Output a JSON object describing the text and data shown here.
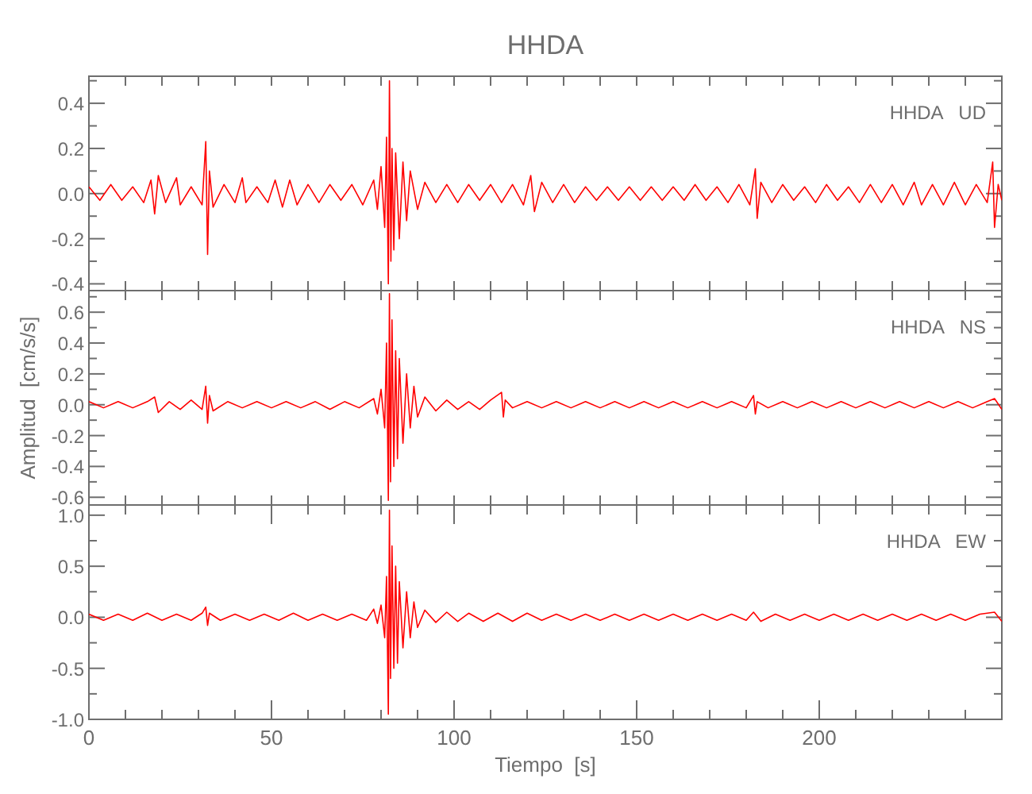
{
  "chart_data": [
    {
      "type": "line",
      "title": "HHDA",
      "annotations": [
        "HHDA   UD"
      ],
      "tick_labels": "y",
      "xlim": [
        0,
        250
      ],
      "xticks": [
        {
          "value": 0,
          "label": null
        },
        {
          "value": 10,
          "label": null
        },
        {
          "value": 20,
          "label": null
        },
        {
          "value": 30,
          "label": null
        },
        {
          "value": 40,
          "label": null
        },
        {
          "value": 50,
          "label": null
        },
        {
          "value": 60,
          "label": null
        },
        {
          "value": 70,
          "label": null
        },
        {
          "value": 80,
          "label": null
        },
        {
          "value": 90,
          "label": null
        },
        {
          "value": 100,
          "label": null
        },
        {
          "value": 110,
          "label": null
        },
        {
          "value": 120,
          "label": null
        },
        {
          "value": 130,
          "label": null
        },
        {
          "value": 140,
          "label": null
        },
        {
          "value": 150,
          "label": null
        },
        {
          "value": 160,
          "label": null
        },
        {
          "value": 170,
          "label": null
        },
        {
          "value": 180,
          "label": null
        },
        {
          "value": 190,
          "label": null
        },
        {
          "value": 200,
          "label": null
        },
        {
          "value": 210,
          "label": null
        },
        {
          "value": 220,
          "label": null
        },
        {
          "value": 230,
          "label": null
        },
        {
          "value": 240,
          "label": null
        }
      ],
      "ylim": [
        -0.43,
        0.52
      ],
      "yticks": [
        {
          "value": -0.4,
          "label": "-0.4"
        },
        {
          "value": -0.3,
          "label": null
        },
        {
          "value": -0.2,
          "label": "-0.2"
        },
        {
          "value": -0.1,
          "label": null
        },
        {
          "value": 0,
          "label": "0.0"
        },
        {
          "value": 0.1,
          "label": null
        },
        0.2,
        {
          "value": 0.3,
          "label": null
        },
        0.4,
        {
          "value": 0.5,
          "label": null
        }
      ],
      "series": [
        {
          "color": "#ff0000",
          "x": [
            0,
            3,
            6,
            9,
            12,
            15,
            17,
            18,
            19,
            21,
            24,
            25,
            28,
            31,
            32,
            32.5,
            33,
            34,
            37,
            40,
            42,
            43,
            46,
            49,
            51,
            53,
            55,
            57,
            60,
            63,
            66,
            69,
            72,
            75,
            78,
            79,
            80,
            81,
            81.5,
            82,
            82.3,
            82.7,
            83,
            83.5,
            84,
            85,
            86,
            87,
            88,
            90,
            92,
            95,
            98,
            101,
            104,
            107,
            110,
            113,
            116,
            119,
            121,
            122,
            124,
            127,
            130,
            133,
            136,
            139,
            142,
            145,
            148,
            151,
            154,
            157,
            160,
            163,
            166,
            169,
            172,
            175,
            178,
            181,
            182.5,
            183,
            184,
            187,
            190,
            193,
            196,
            199,
            202,
            205,
            208,
            211,
            214,
            217,
            220,
            223,
            226,
            228,
            231,
            234,
            237,
            240,
            243,
            246,
            247.5,
            248,
            249,
            250
          ],
          "values": [
            0.03,
            -0.03,
            0.04,
            -0.03,
            0.03,
            -0.04,
            0.06,
            -0.09,
            0.08,
            -0.04,
            0.07,
            -0.05,
            0.03,
            -0.05,
            0.23,
            -0.27,
            0.1,
            -0.06,
            0.04,
            -0.04,
            0.07,
            -0.04,
            0.03,
            -0.04,
            0.06,
            -0.06,
            0.06,
            -0.05,
            0.04,
            -0.04,
            0.04,
            -0.03,
            0.04,
            -0.05,
            0.06,
            -0.07,
            0.12,
            -0.15,
            0.25,
            -0.4,
            0.5,
            -0.3,
            0.2,
            -0.25,
            0.18,
            -0.2,
            0.14,
            -0.12,
            0.1,
            -0.07,
            0.05,
            -0.04,
            0.04,
            -0.04,
            0.04,
            -0.03,
            0.04,
            -0.04,
            0.04,
            -0.05,
            0.08,
            -0.08,
            0.05,
            -0.04,
            0.04,
            -0.04,
            0.03,
            -0.03,
            0.03,
            -0.03,
            0.03,
            -0.03,
            0.03,
            -0.03,
            0.03,
            -0.03,
            0.04,
            -0.03,
            0.03,
            -0.04,
            0.04,
            -0.05,
            0.11,
            -0.11,
            0.05,
            -0.04,
            0.04,
            -0.03,
            0.03,
            -0.04,
            0.04,
            -0.03,
            0.03,
            -0.04,
            0.04,
            -0.04,
            0.04,
            -0.05,
            0.05,
            -0.05,
            0.04,
            -0.05,
            0.05,
            -0.05,
            0.04,
            -0.04,
            0.14,
            -0.15,
            0.04,
            -0.03
          ]
        }
      ]
    },
    {
      "type": "line",
      "ylabel": "Amplitud  [cm/s/s]",
      "annotations": [
        "HHDA   NS"
      ],
      "tick_labels": "y",
      "xlim": [
        0,
        250
      ],
      "xticks": [
        {
          "value": 0,
          "label": null
        },
        {
          "value": 10,
          "label": null
        },
        {
          "value": 20,
          "label": null
        },
        {
          "value": 30,
          "label": null
        },
        {
          "value": 40,
          "label": null
        },
        {
          "value": 50,
          "label": null
        },
        {
          "value": 60,
          "label": null
        },
        {
          "value": 70,
          "label": null
        },
        {
          "value": 80,
          "label": null
        },
        {
          "value": 90,
          "label": null
        },
        {
          "value": 100,
          "label": null
        },
        {
          "value": 110,
          "label": null
        },
        {
          "value": 120,
          "label": null
        },
        {
          "value": 130,
          "label": null
        },
        {
          "value": 140,
          "label": null
        },
        {
          "value": 150,
          "label": null
        },
        {
          "value": 160,
          "label": null
        },
        {
          "value": 170,
          "label": null
        },
        {
          "value": 180,
          "label": null
        },
        {
          "value": 190,
          "label": null
        },
        {
          "value": 200,
          "label": null
        },
        {
          "value": 210,
          "label": null
        },
        {
          "value": 220,
          "label": null
        },
        {
          "value": 230,
          "label": null
        },
        {
          "value": 240,
          "label": null
        }
      ],
      "ylim": [
        -0.65,
        0.74
      ],
      "yticks": [
        {
          "value": -0.6,
          "label": "-0.6"
        },
        {
          "value": -0.5,
          "label": null
        },
        {
          "value": -0.4,
          "label": "-0.4"
        },
        {
          "value": -0.3,
          "label": null
        },
        {
          "value": -0.2,
          "label": "-0.2"
        },
        {
          "value": -0.1,
          "label": null
        },
        {
          "value": 0,
          "label": "0.0"
        },
        {
          "value": 0.1,
          "label": null
        },
        0.2,
        {
          "value": 0.3,
          "label": null
        },
        0.4,
        {
          "value": 0.5,
          "label": null
        },
        0.6,
        {
          "value": 0.7,
          "label": null
        }
      ],
      "series": [
        {
          "color": "#ff0000",
          "x": [
            0,
            4,
            8,
            12,
            16,
            18,
            19,
            22,
            25,
            28,
            31,
            32,
            32.5,
            33,
            34,
            38,
            42,
            46,
            50,
            54,
            58,
            62,
            66,
            70,
            74,
            78,
            79,
            80,
            81,
            81.5,
            82,
            82.3,
            82.6,
            83,
            83.5,
            84,
            84.5,
            85,
            86,
            87,
            88,
            89,
            90,
            92,
            95,
            98,
            101,
            104,
            107,
            110,
            113,
            113.5,
            114,
            116,
            120,
            124,
            128,
            132,
            136,
            140,
            144,
            148,
            152,
            156,
            160,
            164,
            168,
            172,
            176,
            180,
            182,
            182.5,
            183,
            186,
            190,
            194,
            198,
            202,
            206,
            210,
            214,
            218,
            222,
            226,
            230,
            234,
            238,
            242,
            246,
            248,
            250
          ],
          "values": [
            0.02,
            -0.02,
            0.02,
            -0.02,
            0.02,
            0.05,
            -0.05,
            0.02,
            -0.03,
            0.03,
            -0.03,
            0.12,
            -0.12,
            0.06,
            -0.04,
            0.02,
            -0.02,
            0.02,
            -0.02,
            0.02,
            -0.02,
            0.02,
            -0.03,
            0.02,
            -0.02,
            0.04,
            -0.06,
            0.1,
            -0.15,
            0.4,
            -0.62,
            0.72,
            -0.5,
            0.55,
            -0.4,
            0.35,
            -0.35,
            0.3,
            -0.25,
            0.2,
            -0.15,
            0.12,
            -0.08,
            0.05,
            -0.04,
            0.03,
            -0.03,
            0.02,
            -0.03,
            0.03,
            0.08,
            -0.08,
            0.03,
            -0.02,
            0.02,
            -0.02,
            0.02,
            -0.02,
            0.02,
            -0.02,
            0.02,
            -0.02,
            0.02,
            -0.02,
            0.02,
            -0.02,
            0.02,
            -0.02,
            0.02,
            -0.02,
            0.06,
            -0.06,
            0.02,
            -0.02,
            0.02,
            -0.02,
            0.02,
            -0.02,
            0.02,
            -0.02,
            0.02,
            -0.02,
            0.02,
            -0.02,
            0.02,
            -0.02,
            0.02,
            -0.02,
            0.02,
            0.04,
            -0.03
          ]
        }
      ]
    },
    {
      "type": "line",
      "xlabel": "Tiempo  [s]",
      "annotations": [
        "HHDA   EW"
      ],
      "xlim": [
        0,
        250
      ],
      "xticks": [
        0,
        {
          "value": 10,
          "label": null
        },
        {
          "value": 20,
          "label": null
        },
        {
          "value": 30,
          "label": null
        },
        {
          "value": 40,
          "label": null
        },
        50,
        {
          "value": 60,
          "label": null
        },
        {
          "value": 70,
          "label": null
        },
        {
          "value": 80,
          "label": null
        },
        {
          "value": 90,
          "label": null
        },
        100,
        {
          "value": 110,
          "label": null
        },
        {
          "value": 120,
          "label": null
        },
        {
          "value": 130,
          "label": null
        },
        {
          "value": 140,
          "label": null
        },
        150,
        {
          "value": 160,
          "label": null
        },
        {
          "value": 170,
          "label": null
        },
        {
          "value": 180,
          "label": null
        },
        {
          "value": 190,
          "label": null
        },
        200,
        {
          "value": 210,
          "label": null
        },
        {
          "value": 220,
          "label": null
        },
        {
          "value": 230,
          "label": null
        },
        {
          "value": 240,
          "label": null
        }
      ],
      "ylim": [
        -1.0,
        1.1
      ],
      "yticks": [
        {
          "value": -1,
          "label": "-1.0"
        },
        {
          "value": -0.75,
          "label": null
        },
        {
          "value": -0.5,
          "label": "-0.5"
        },
        {
          "value": -0.25,
          "label": null
        },
        {
          "value": 0,
          "label": "0.0"
        },
        {
          "value": 0.25,
          "label": null
        },
        0.5,
        {
          "value": 0.75,
          "label": null
        },
        {
          "value": 1,
          "label": "1.0"
        }
      ],
      "series": [
        {
          "color": "#ff0000",
          "x": [
            0,
            4,
            8,
            12,
            16,
            20,
            24,
            28,
            31,
            32,
            32.5,
            33,
            36,
            40,
            44,
            48,
            52,
            56,
            60,
            64,
            68,
            72,
            76,
            78,
            79,
            80,
            81,
            81.5,
            82,
            82.3,
            82.6,
            83,
            83.5,
            84,
            84.5,
            85,
            86,
            87,
            88,
            89,
            90,
            92,
            95,
            98,
            101,
            104,
            108,
            112,
            116,
            120,
            124,
            128,
            132,
            136,
            140,
            144,
            148,
            152,
            156,
            160,
            164,
            168,
            172,
            176,
            180,
            182,
            184,
            188,
            192,
            196,
            200,
            204,
            208,
            212,
            216,
            220,
            224,
            228,
            232,
            236,
            240,
            244,
            248,
            250
          ],
          "values": [
            0.03,
            -0.03,
            0.03,
            -0.03,
            0.04,
            -0.03,
            0.03,
            -0.03,
            0.04,
            0.1,
            -0.08,
            0.04,
            -0.03,
            0.03,
            -0.03,
            0.03,
            -0.03,
            0.04,
            -0.03,
            0.03,
            -0.03,
            0.03,
            -0.03,
            0.08,
            -0.06,
            0.12,
            -0.2,
            0.4,
            -0.95,
            1.05,
            -0.6,
            0.7,
            -0.5,
            0.5,
            -0.45,
            0.35,
            -0.3,
            0.25,
            -0.2,
            0.15,
            -0.1,
            0.07,
            -0.05,
            0.05,
            -0.04,
            0.04,
            -0.04,
            0.04,
            -0.04,
            0.04,
            -0.03,
            0.03,
            -0.03,
            0.03,
            -0.03,
            0.03,
            -0.03,
            0.03,
            -0.03,
            0.03,
            -0.03,
            0.03,
            -0.03,
            0.03,
            -0.03,
            0.05,
            -0.04,
            0.03,
            -0.03,
            0.03,
            -0.03,
            0.03,
            -0.03,
            0.03,
            -0.03,
            0.03,
            -0.03,
            0.03,
            -0.03,
            0.03,
            -0.03,
            0.03,
            0.05,
            -0.04
          ]
        }
      ]
    }
  ]
}
